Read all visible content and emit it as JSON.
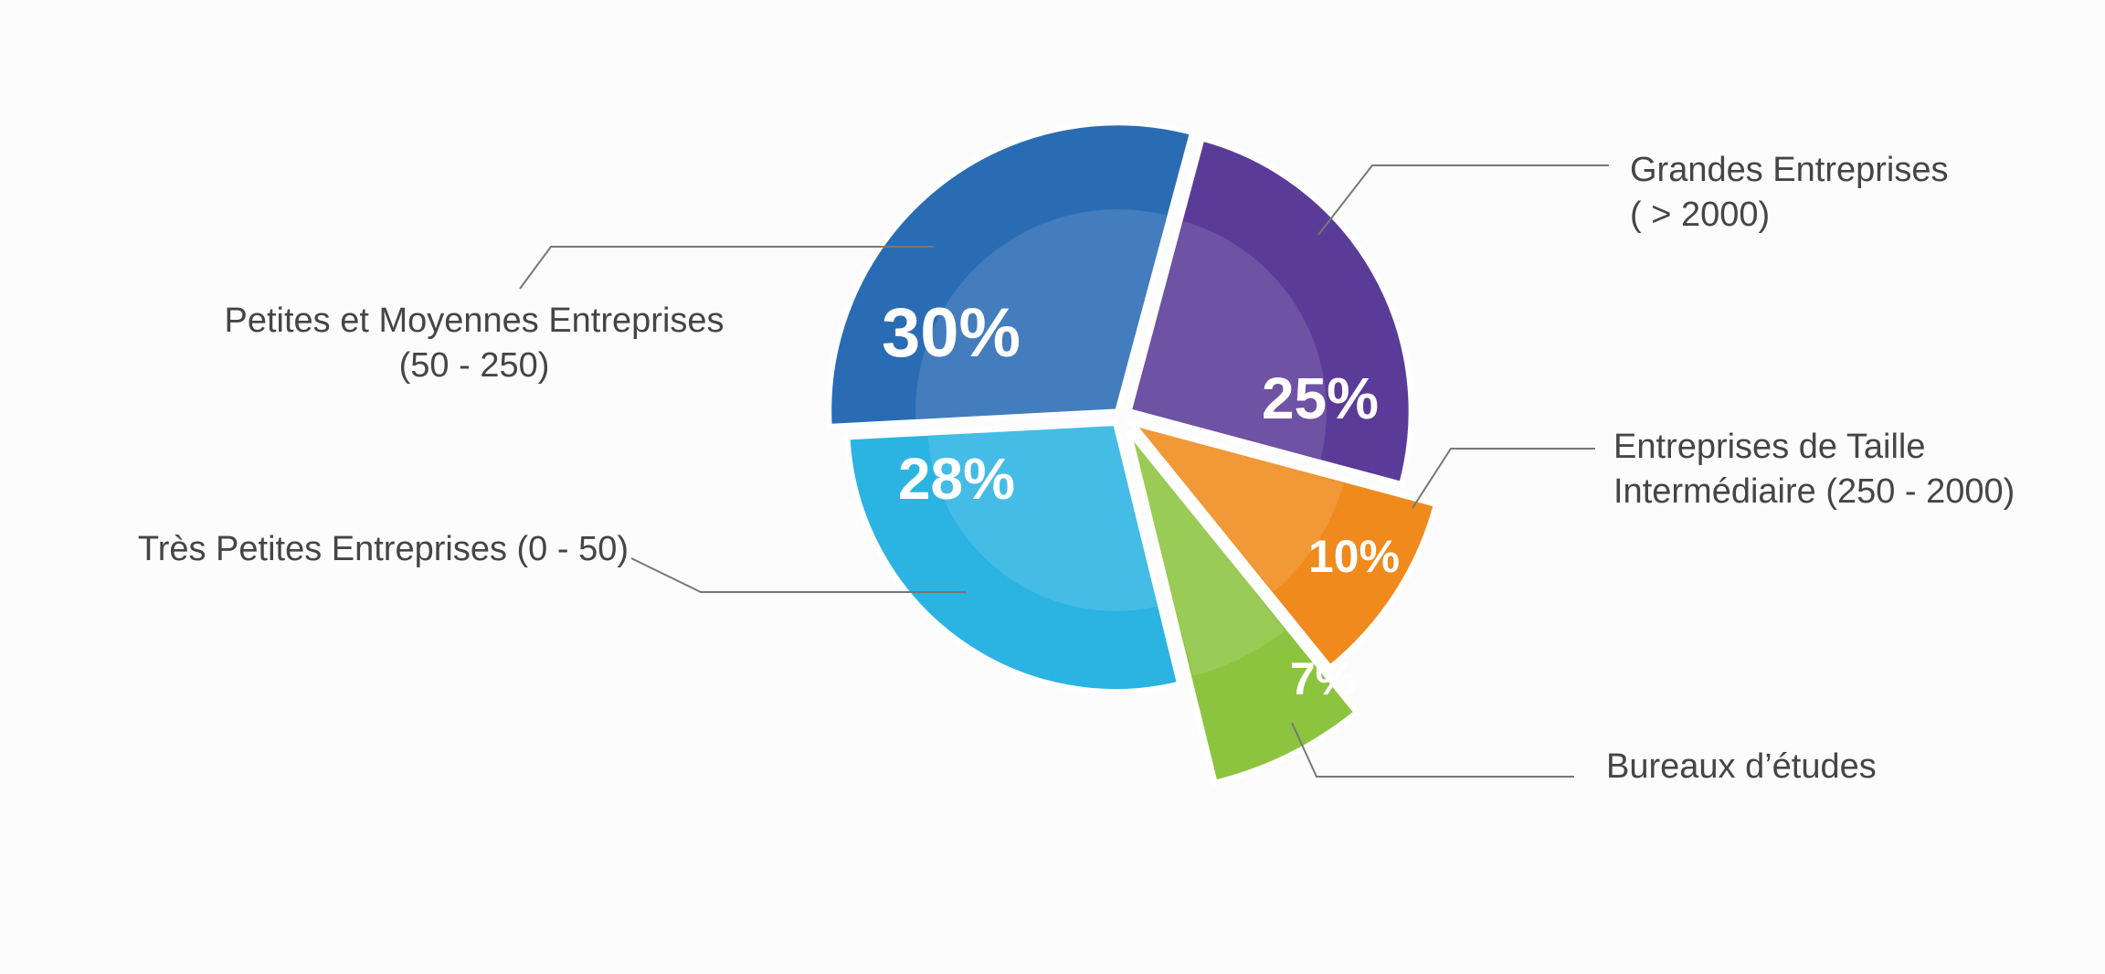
{
  "chart_data": {
    "type": "pie",
    "categories": [
      [
        "Grandes Entreprises",
        "( > 2000)"
      ],
      [
        "Entreprises de Taille",
        "Intermédiaire (250 - 2000)"
      ],
      [
        "Bureaux d’études"
      ],
      [
        "Très Petites Entreprises (0 - 50)"
      ],
      [
        "Petites et Moyennes Entreprises",
        "(50 - 250)"
      ]
    ],
    "values": [
      25,
      10,
      7,
      28,
      30
    ],
    "value_labels": [
      "25%",
      "10%",
      "7%",
      "28%",
      "30%"
    ],
    "colors": [
      "#5b3b98",
      "#f08a1c",
      "#8cc43f",
      "#2bb3e2",
      "#2a6cb4"
    ]
  }
}
